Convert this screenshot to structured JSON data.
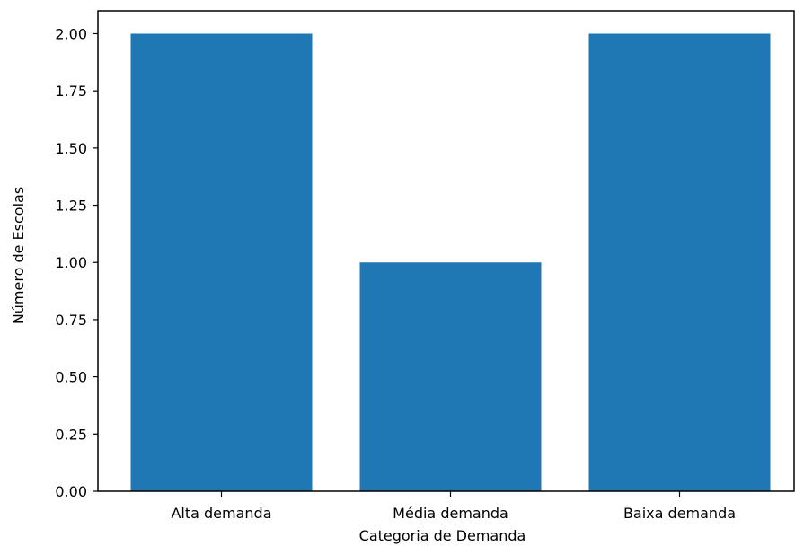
{
  "chart_data": {
    "type": "bar",
    "title": "",
    "xlabel": "Categoria de Demanda",
    "ylabel": "Número de Escolas",
    "categories": [
      "Alta demanda",
      "Média demanda",
      "Baixa demanda"
    ],
    "values": [
      2,
      1,
      2
    ],
    "ylim": [
      0,
      2.1
    ],
    "yticks": [
      "0.00",
      "0.25",
      "0.50",
      "0.75",
      "1.00",
      "1.25",
      "1.50",
      "1.75",
      "2.00"
    ],
    "grid": false,
    "bar_color": "#1f77b4"
  }
}
